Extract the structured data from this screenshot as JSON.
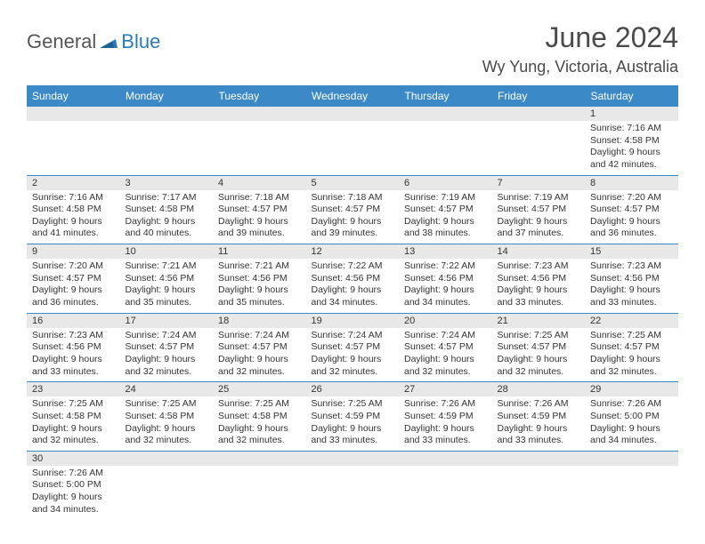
{
  "logo": {
    "text1": "General",
    "text2": "Blue"
  },
  "title": "June 2024",
  "location": "Wy Yung, Victoria, Australia",
  "colors": {
    "header_bg": "#3b89c7",
    "header_text": "#ffffff",
    "daynum_bg": "#e8e8e8",
    "border": "#3b89c7",
    "logo_gray": "#555555",
    "logo_blue": "#2a7ab8",
    "title_color": "#4a4a4a"
  },
  "weekdays": [
    "Sunday",
    "Monday",
    "Tuesday",
    "Wednesday",
    "Thursday",
    "Friday",
    "Saturday"
  ],
  "weeks": [
    [
      null,
      null,
      null,
      null,
      null,
      null,
      {
        "n": "1",
        "sr": "Sunrise: 7:16 AM",
        "ss": "Sunset: 4:58 PM",
        "dl1": "Daylight: 9 hours",
        "dl2": "and 42 minutes."
      }
    ],
    [
      {
        "n": "2",
        "sr": "Sunrise: 7:16 AM",
        "ss": "Sunset: 4:58 PM",
        "dl1": "Daylight: 9 hours",
        "dl2": "and 41 minutes."
      },
      {
        "n": "3",
        "sr": "Sunrise: 7:17 AM",
        "ss": "Sunset: 4:58 PM",
        "dl1": "Daylight: 9 hours",
        "dl2": "and 40 minutes."
      },
      {
        "n": "4",
        "sr": "Sunrise: 7:18 AM",
        "ss": "Sunset: 4:57 PM",
        "dl1": "Daylight: 9 hours",
        "dl2": "and 39 minutes."
      },
      {
        "n": "5",
        "sr": "Sunrise: 7:18 AM",
        "ss": "Sunset: 4:57 PM",
        "dl1": "Daylight: 9 hours",
        "dl2": "and 39 minutes."
      },
      {
        "n": "6",
        "sr": "Sunrise: 7:19 AM",
        "ss": "Sunset: 4:57 PM",
        "dl1": "Daylight: 9 hours",
        "dl2": "and 38 minutes."
      },
      {
        "n": "7",
        "sr": "Sunrise: 7:19 AM",
        "ss": "Sunset: 4:57 PM",
        "dl1": "Daylight: 9 hours",
        "dl2": "and 37 minutes."
      },
      {
        "n": "8",
        "sr": "Sunrise: 7:20 AM",
        "ss": "Sunset: 4:57 PM",
        "dl1": "Daylight: 9 hours",
        "dl2": "and 36 minutes."
      }
    ],
    [
      {
        "n": "9",
        "sr": "Sunrise: 7:20 AM",
        "ss": "Sunset: 4:57 PM",
        "dl1": "Daylight: 9 hours",
        "dl2": "and 36 minutes."
      },
      {
        "n": "10",
        "sr": "Sunrise: 7:21 AM",
        "ss": "Sunset: 4:56 PM",
        "dl1": "Daylight: 9 hours",
        "dl2": "and 35 minutes."
      },
      {
        "n": "11",
        "sr": "Sunrise: 7:21 AM",
        "ss": "Sunset: 4:56 PM",
        "dl1": "Daylight: 9 hours",
        "dl2": "and 35 minutes."
      },
      {
        "n": "12",
        "sr": "Sunrise: 7:22 AM",
        "ss": "Sunset: 4:56 PM",
        "dl1": "Daylight: 9 hours",
        "dl2": "and 34 minutes."
      },
      {
        "n": "13",
        "sr": "Sunrise: 7:22 AM",
        "ss": "Sunset: 4:56 PM",
        "dl1": "Daylight: 9 hours",
        "dl2": "and 34 minutes."
      },
      {
        "n": "14",
        "sr": "Sunrise: 7:23 AM",
        "ss": "Sunset: 4:56 PM",
        "dl1": "Daylight: 9 hours",
        "dl2": "and 33 minutes."
      },
      {
        "n": "15",
        "sr": "Sunrise: 7:23 AM",
        "ss": "Sunset: 4:56 PM",
        "dl1": "Daylight: 9 hours",
        "dl2": "and 33 minutes."
      }
    ],
    [
      {
        "n": "16",
        "sr": "Sunrise: 7:23 AM",
        "ss": "Sunset: 4:56 PM",
        "dl1": "Daylight: 9 hours",
        "dl2": "and 33 minutes."
      },
      {
        "n": "17",
        "sr": "Sunrise: 7:24 AM",
        "ss": "Sunset: 4:57 PM",
        "dl1": "Daylight: 9 hours",
        "dl2": "and 32 minutes."
      },
      {
        "n": "18",
        "sr": "Sunrise: 7:24 AM",
        "ss": "Sunset: 4:57 PM",
        "dl1": "Daylight: 9 hours",
        "dl2": "and 32 minutes."
      },
      {
        "n": "19",
        "sr": "Sunrise: 7:24 AM",
        "ss": "Sunset: 4:57 PM",
        "dl1": "Daylight: 9 hours",
        "dl2": "and 32 minutes."
      },
      {
        "n": "20",
        "sr": "Sunrise: 7:24 AM",
        "ss": "Sunset: 4:57 PM",
        "dl1": "Daylight: 9 hours",
        "dl2": "and 32 minutes."
      },
      {
        "n": "21",
        "sr": "Sunrise: 7:25 AM",
        "ss": "Sunset: 4:57 PM",
        "dl1": "Daylight: 9 hours",
        "dl2": "and 32 minutes."
      },
      {
        "n": "22",
        "sr": "Sunrise: 7:25 AM",
        "ss": "Sunset: 4:57 PM",
        "dl1": "Daylight: 9 hours",
        "dl2": "and 32 minutes."
      }
    ],
    [
      {
        "n": "23",
        "sr": "Sunrise: 7:25 AM",
        "ss": "Sunset: 4:58 PM",
        "dl1": "Daylight: 9 hours",
        "dl2": "and 32 minutes."
      },
      {
        "n": "24",
        "sr": "Sunrise: 7:25 AM",
        "ss": "Sunset: 4:58 PM",
        "dl1": "Daylight: 9 hours",
        "dl2": "and 32 minutes."
      },
      {
        "n": "25",
        "sr": "Sunrise: 7:25 AM",
        "ss": "Sunset: 4:58 PM",
        "dl1": "Daylight: 9 hours",
        "dl2": "and 32 minutes."
      },
      {
        "n": "26",
        "sr": "Sunrise: 7:25 AM",
        "ss": "Sunset: 4:59 PM",
        "dl1": "Daylight: 9 hours",
        "dl2": "and 33 minutes."
      },
      {
        "n": "27",
        "sr": "Sunrise: 7:26 AM",
        "ss": "Sunset: 4:59 PM",
        "dl1": "Daylight: 9 hours",
        "dl2": "and 33 minutes."
      },
      {
        "n": "28",
        "sr": "Sunrise: 7:26 AM",
        "ss": "Sunset: 4:59 PM",
        "dl1": "Daylight: 9 hours",
        "dl2": "and 33 minutes."
      },
      {
        "n": "29",
        "sr": "Sunrise: 7:26 AM",
        "ss": "Sunset: 5:00 PM",
        "dl1": "Daylight: 9 hours",
        "dl2": "and 34 minutes."
      }
    ],
    [
      {
        "n": "30",
        "sr": "Sunrise: 7:26 AM",
        "ss": "Sunset: 5:00 PM",
        "dl1": "Daylight: 9 hours",
        "dl2": "and 34 minutes."
      },
      null,
      null,
      null,
      null,
      null,
      null
    ]
  ]
}
